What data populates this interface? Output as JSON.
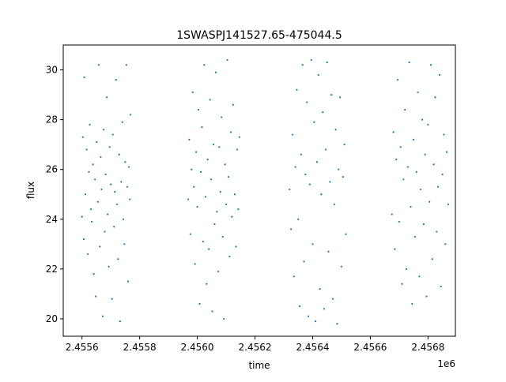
{
  "chart_data": {
    "type": "scatter",
    "title": "1SWASPJ141527.65-475044.5",
    "xlabel": "time",
    "ylabel": "flux",
    "x_offset_label": "1e6",
    "xlim": [
      2455535,
      2456895
    ],
    "ylim": [
      19.3,
      31.0
    ],
    "x_ticks": [
      {
        "value": 2455600,
        "label": "2.4556"
      },
      {
        "value": 2455800,
        "label": "2.4558"
      },
      {
        "value": 2456000,
        "label": "2.4560"
      },
      {
        "value": 2456200,
        "label": "2.4562"
      },
      {
        "value": 2456400,
        "label": "2.4564"
      },
      {
        "value": 2456600,
        "label": "2.4566"
      },
      {
        "value": 2456800,
        "label": "2.4568"
      }
    ],
    "y_ticks": [
      {
        "value": 20,
        "label": "20"
      },
      {
        "value": 22,
        "label": "22"
      },
      {
        "value": 24,
        "label": "24"
      },
      {
        "value": 26,
        "label": "26"
      },
      {
        "value": 28,
        "label": "28"
      },
      {
        "value": 30,
        "label": "30"
      }
    ],
    "grid": false,
    "legend": "none",
    "marker_color": "#1f77b4",
    "series": [
      {
        "points": [
          [
            2455600,
            24.1
          ],
          [
            2455603,
            27.3
          ],
          [
            2455606,
            23.2
          ],
          [
            2455608,
            29.7
          ],
          [
            2455612,
            25.0
          ],
          [
            2455616,
            26.8
          ],
          [
            2455620,
            22.6
          ],
          [
            2455624,
            25.9
          ],
          [
            2455627,
            27.8
          ],
          [
            2455631,
            24.4
          ],
          [
            2455634,
            23.9
          ],
          [
            2455638,
            26.2
          ],
          [
            2455641,
            21.8
          ],
          [
            2455645,
            25.6
          ],
          [
            2455648,
            20.9
          ],
          [
            2455651,
            27.1
          ],
          [
            2455655,
            24.7
          ],
          [
            2455658,
            30.2
          ],
          [
            2455662,
            22.9
          ],
          [
            2455665,
            26.5
          ],
          [
            2455668,
            25.2
          ],
          [
            2455672,
            20.1
          ],
          [
            2455675,
            27.6
          ],
          [
            2455679,
            23.5
          ],
          [
            2455682,
            25.8
          ],
          [
            2455686,
            28.9
          ],
          [
            2455689,
            24.2
          ],
          [
            2455693,
            22.1
          ],
          [
            2455696,
            26.9
          ],
          [
            2455700,
            25.4
          ],
          [
            2455704,
            20.8
          ],
          [
            2455707,
            27.4
          ],
          [
            2455711,
            23.7
          ],
          [
            2455714,
            25.1
          ],
          [
            2455718,
            29.6
          ],
          [
            2455722,
            24.6
          ],
          [
            2455725,
            22.4
          ],
          [
            2455729,
            26.6
          ],
          [
            2455732,
            19.9
          ],
          [
            2455736,
            25.5
          ],
          [
            2455740,
            27.9
          ],
          [
            2455743,
            24.0
          ],
          [
            2455747,
            23.0
          ],
          [
            2455750,
            26.3
          ],
          [
            2455754,
            30.2
          ],
          [
            2455757,
            25.3
          ],
          [
            2455760,
            21.5
          ],
          [
            2455763,
            26.1
          ],
          [
            2455766,
            24.8
          ],
          [
            2455768,
            28.2
          ],
          [
            2455968,
            24.8
          ],
          [
            2455972,
            27.2
          ],
          [
            2455976,
            23.4
          ],
          [
            2455980,
            26.0
          ],
          [
            2455984,
            29.1
          ],
          [
            2455988,
            25.3
          ],
          [
            2455992,
            22.2
          ],
          [
            2455996,
            26.7
          ],
          [
            2456000,
            24.5
          ],
          [
            2456004,
            28.4
          ],
          [
            2456008,
            20.6
          ],
          [
            2456012,
            25.9
          ],
          [
            2456016,
            27.7
          ],
          [
            2456020,
            23.1
          ],
          [
            2456024,
            30.2
          ],
          [
            2456028,
            24.9
          ],
          [
            2456032,
            21.4
          ],
          [
            2456036,
            26.4
          ],
          [
            2456040,
            22.8
          ],
          [
            2456044,
            28.8
          ],
          [
            2456048,
            25.6
          ],
          [
            2456052,
            20.3
          ],
          [
            2456056,
            27.0
          ],
          [
            2456060,
            23.8
          ],
          [
            2456064,
            29.9
          ],
          [
            2456068,
            24.3
          ],
          [
            2456072,
            21.9
          ],
          [
            2456076,
            26.9
          ],
          [
            2456080,
            25.1
          ],
          [
            2456084,
            28.1
          ],
          [
            2456088,
            23.3
          ],
          [
            2456092,
            20.0
          ],
          [
            2456096,
            26.2
          ],
          [
            2456100,
            24.6
          ],
          [
            2456104,
            30.4
          ],
          [
            2456108,
            25.7
          ],
          [
            2456112,
            22.5
          ],
          [
            2456116,
            27.5
          ],
          [
            2456120,
            24.1
          ],
          [
            2456124,
            28.6
          ],
          [
            2456130,
            25.0
          ],
          [
            2456134,
            22.9
          ],
          [
            2456138,
            26.8
          ],
          [
            2456142,
            24.4
          ],
          [
            2456146,
            27.3
          ],
          [
            2456320,
            25.2
          ],
          [
            2456325,
            23.6
          ],
          [
            2456330,
            27.4
          ],
          [
            2456335,
            21.7
          ],
          [
            2456340,
            26.1
          ],
          [
            2456345,
            29.2
          ],
          [
            2456350,
            24.0
          ],
          [
            2456355,
            20.5
          ],
          [
            2456360,
            26.6
          ],
          [
            2456365,
            30.2
          ],
          [
            2456370,
            22.3
          ],
          [
            2456375,
            25.8
          ],
          [
            2456380,
            28.7
          ],
          [
            2456385,
            20.1
          ],
          [
            2456390,
            25.4
          ],
          [
            2456395,
            30.4
          ],
          [
            2456400,
            23.0
          ],
          [
            2456405,
            27.9
          ],
          [
            2456410,
            19.9
          ],
          [
            2456415,
            26.3
          ],
          [
            2456420,
            29.8
          ],
          [
            2456425,
            21.2
          ],
          [
            2456430,
            25.0
          ],
          [
            2456435,
            28.3
          ],
          [
            2456440,
            20.4
          ],
          [
            2456445,
            26.8
          ],
          [
            2456450,
            30.3
          ],
          [
            2456455,
            22.7
          ],
          [
            2456460,
            25.5
          ],
          [
            2456465,
            29.0
          ],
          [
            2456470,
            20.8
          ],
          [
            2456475,
            24.6
          ],
          [
            2456480,
            27.6
          ],
          [
            2456485,
            19.8
          ],
          [
            2456490,
            26.0
          ],
          [
            2456495,
            28.9
          ],
          [
            2456500,
            22.1
          ],
          [
            2456505,
            25.7
          ],
          [
            2456510,
            27.0
          ],
          [
            2456515,
            23.4
          ],
          [
            2456675,
            24.2
          ],
          [
            2456680,
            27.5
          ],
          [
            2456685,
            22.8
          ],
          [
            2456690,
            26.4
          ],
          [
            2456695,
            29.6
          ],
          [
            2456700,
            23.9
          ],
          [
            2456705,
            26.9
          ],
          [
            2456710,
            21.4
          ],
          [
            2456715,
            25.6
          ],
          [
            2456720,
            28.4
          ],
          [
            2456725,
            22.0
          ],
          [
            2456730,
            26.1
          ],
          [
            2456735,
            30.3
          ],
          [
            2456740,
            24.5
          ],
          [
            2456745,
            20.6
          ],
          [
            2456750,
            27.2
          ],
          [
            2456755,
            23.3
          ],
          [
            2456760,
            25.9
          ],
          [
            2456765,
            29.1
          ],
          [
            2456770,
            21.7
          ],
          [
            2456775,
            25.2
          ],
          [
            2456780,
            28.0
          ],
          [
            2456785,
            23.8
          ],
          [
            2456790,
            26.6
          ],
          [
            2456795,
            20.9
          ],
          [
            2456800,
            27.8
          ],
          [
            2456805,
            24.7
          ],
          [
            2456810,
            30.2
          ],
          [
            2456815,
            22.4
          ],
          [
            2456820,
            26.2
          ],
          [
            2456825,
            28.9
          ],
          [
            2456830,
            23.5
          ],
          [
            2456835,
            25.3
          ],
          [
            2456840,
            29.8
          ],
          [
            2456845,
            21.3
          ],
          [
            2456850,
            25.8
          ],
          [
            2456855,
            27.4
          ],
          [
            2456860,
            23.0
          ],
          [
            2456865,
            26.7
          ],
          [
            2456870,
            24.6
          ]
        ]
      }
    ]
  }
}
